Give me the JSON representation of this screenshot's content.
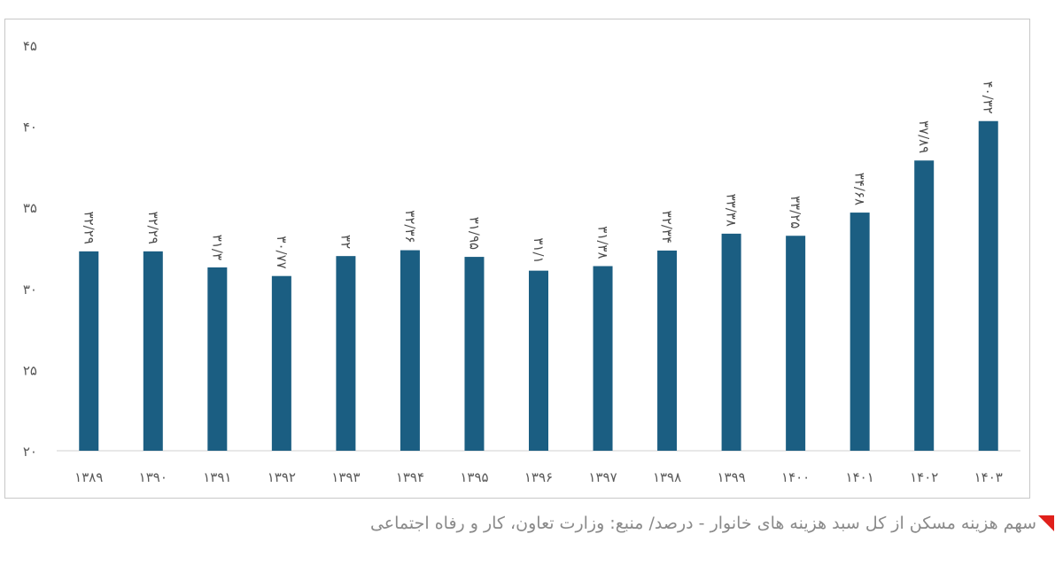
{
  "chart_data": {
    "type": "bar",
    "categories": [
      "۱۳۸۹",
      "۱۳۹۰",
      "۱۳۹۱",
      "۱۳۹۲",
      "۱۳۹۳",
      "۱۳۹۴",
      "۱۳۹۵",
      "۱۳۹۶",
      "۱۳۹۷",
      "۱۳۹۸",
      "۱۳۹۹",
      "۱۴۰۰",
      "۱۴۰۱",
      "۱۴۰۲",
      "۱۴۰۳"
    ],
    "values": [
      32.29,
      32.29,
      31.3,
      30.77,
      32,
      32.36,
      31.95,
      31.1,
      31.38,
      32.34,
      33.38,
      33.25,
      34.68,
      37.89,
      40.32
    ],
    "value_labels": [
      "۳۲/۲۹",
      "۳۲/۲۹",
      "۳۱/۳",
      "۳۰/۷۷",
      "۳۲",
      "۳۲/۳۶",
      "۳۱/۹۵",
      "۳۱/۱",
      "۳۱/۳۸",
      "۳۲/۳۴",
      "۳۳/۳۸",
      "۳۳/۲۵",
      "۳۴/۶۸",
      "۳۷/۸۹",
      "۴۰/۳۲"
    ],
    "ylim": [
      20,
      45
    ],
    "yticks": [
      20,
      25,
      30,
      35,
      40,
      45
    ],
    "ytick_labels": [
      "۲۰",
      "۲۵",
      "۳۰",
      "۳۵",
      "۴۰",
      "۴۵"
    ],
    "grid": false,
    "bar_color": "#1b5e82",
    "title": "",
    "xlabel": "",
    "ylabel": ""
  },
  "caption": {
    "text": "سهم هزینه مسکن از کل سبد هزینه های خانوار - درصد/ منبع: وزارت تعاون، کار و رفاه اجتماعی",
    "marker_color": "#e0201b"
  }
}
